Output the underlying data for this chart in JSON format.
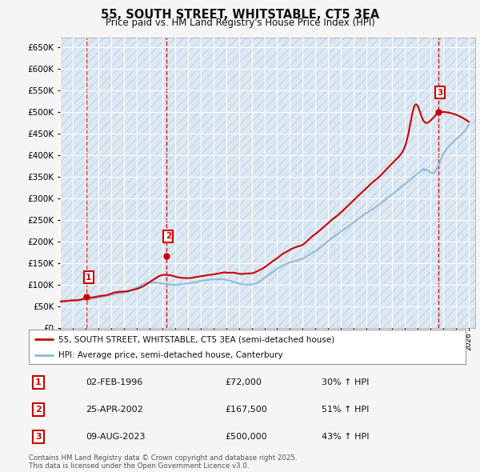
{
  "title": "55, SOUTH STREET, WHITSTABLE, CT5 3EA",
  "subtitle": "Price paid vs. HM Land Registry's House Price Index (HPI)",
  "ylabel_ticks": [
    "£0",
    "£50K",
    "£100K",
    "£150K",
    "£200K",
    "£250K",
    "£300K",
    "£350K",
    "£400K",
    "£450K",
    "£500K",
    "£550K",
    "£600K",
    "£650K"
  ],
  "ytick_values": [
    0,
    50000,
    100000,
    150000,
    200000,
    250000,
    300000,
    350000,
    400000,
    450000,
    500000,
    550000,
    600000,
    650000
  ],
  "xmin": 1994.0,
  "xmax": 2026.5,
  "ymin": 0,
  "ymax": 672000,
  "purchases": [
    {
      "label": "1",
      "date": 1996.09,
      "price": 72000
    },
    {
      "label": "2",
      "date": 2002.32,
      "price": 167500
    },
    {
      "label": "3",
      "date": 2023.61,
      "price": 500000
    }
  ],
  "purchase_color": "#cc0000",
  "hpi_color": "#88b8d8",
  "legend_label_price": "55, SOUTH STREET, WHITSTABLE, CT5 3EA (semi-detached house)",
  "legend_label_hpi": "HPI: Average price, semi-detached house, Canterbury",
  "table_rows": [
    {
      "num": "1",
      "date": "02-FEB-1996",
      "price": "£72,000",
      "hpi": "30% ↑ HPI"
    },
    {
      "num": "2",
      "date": "25-APR-2002",
      "price": "£167,500",
      "hpi": "51% ↑ HPI"
    },
    {
      "num": "3",
      "date": "09-AUG-2023",
      "price": "£500,000",
      "hpi": "43% ↑ HPI"
    }
  ],
  "footer": "Contains HM Land Registry data © Crown copyright and database right 2025.\nThis data is licensed under the Open Government Licence v3.0.",
  "bg_color": "#f5f5f5",
  "plot_bg_color": "#dce8f2",
  "grid_color": "#ffffff",
  "hatch_color": "#c8d8e8",
  "vline_color": "#cc0000"
}
